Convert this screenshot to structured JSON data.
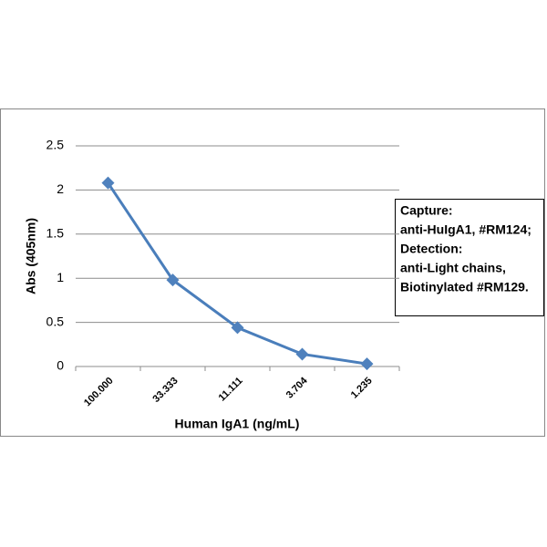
{
  "chart_data": {
    "type": "line",
    "x_label": "Human IgA1 (ng/mL)",
    "y_label": "Abs (405nm)",
    "categories": [
      "100.000",
      "33.333",
      "11.111",
      "3.704",
      "1.235"
    ],
    "values": [
      2.08,
      0.98,
      0.44,
      0.14,
      0.03
    ],
    "color": "#4a7ebb",
    "ylim": [
      0,
      2.5
    ],
    "yticks": [
      0,
      0.5,
      1,
      1.5,
      2,
      2.5
    ],
    "grid": true,
    "annotation": [
      "Capture:",
      "anti-HuIgA1, #RM124;",
      "Detection:",
      "anti-Light chains,",
      "Biotinylated #RM129."
    ]
  }
}
